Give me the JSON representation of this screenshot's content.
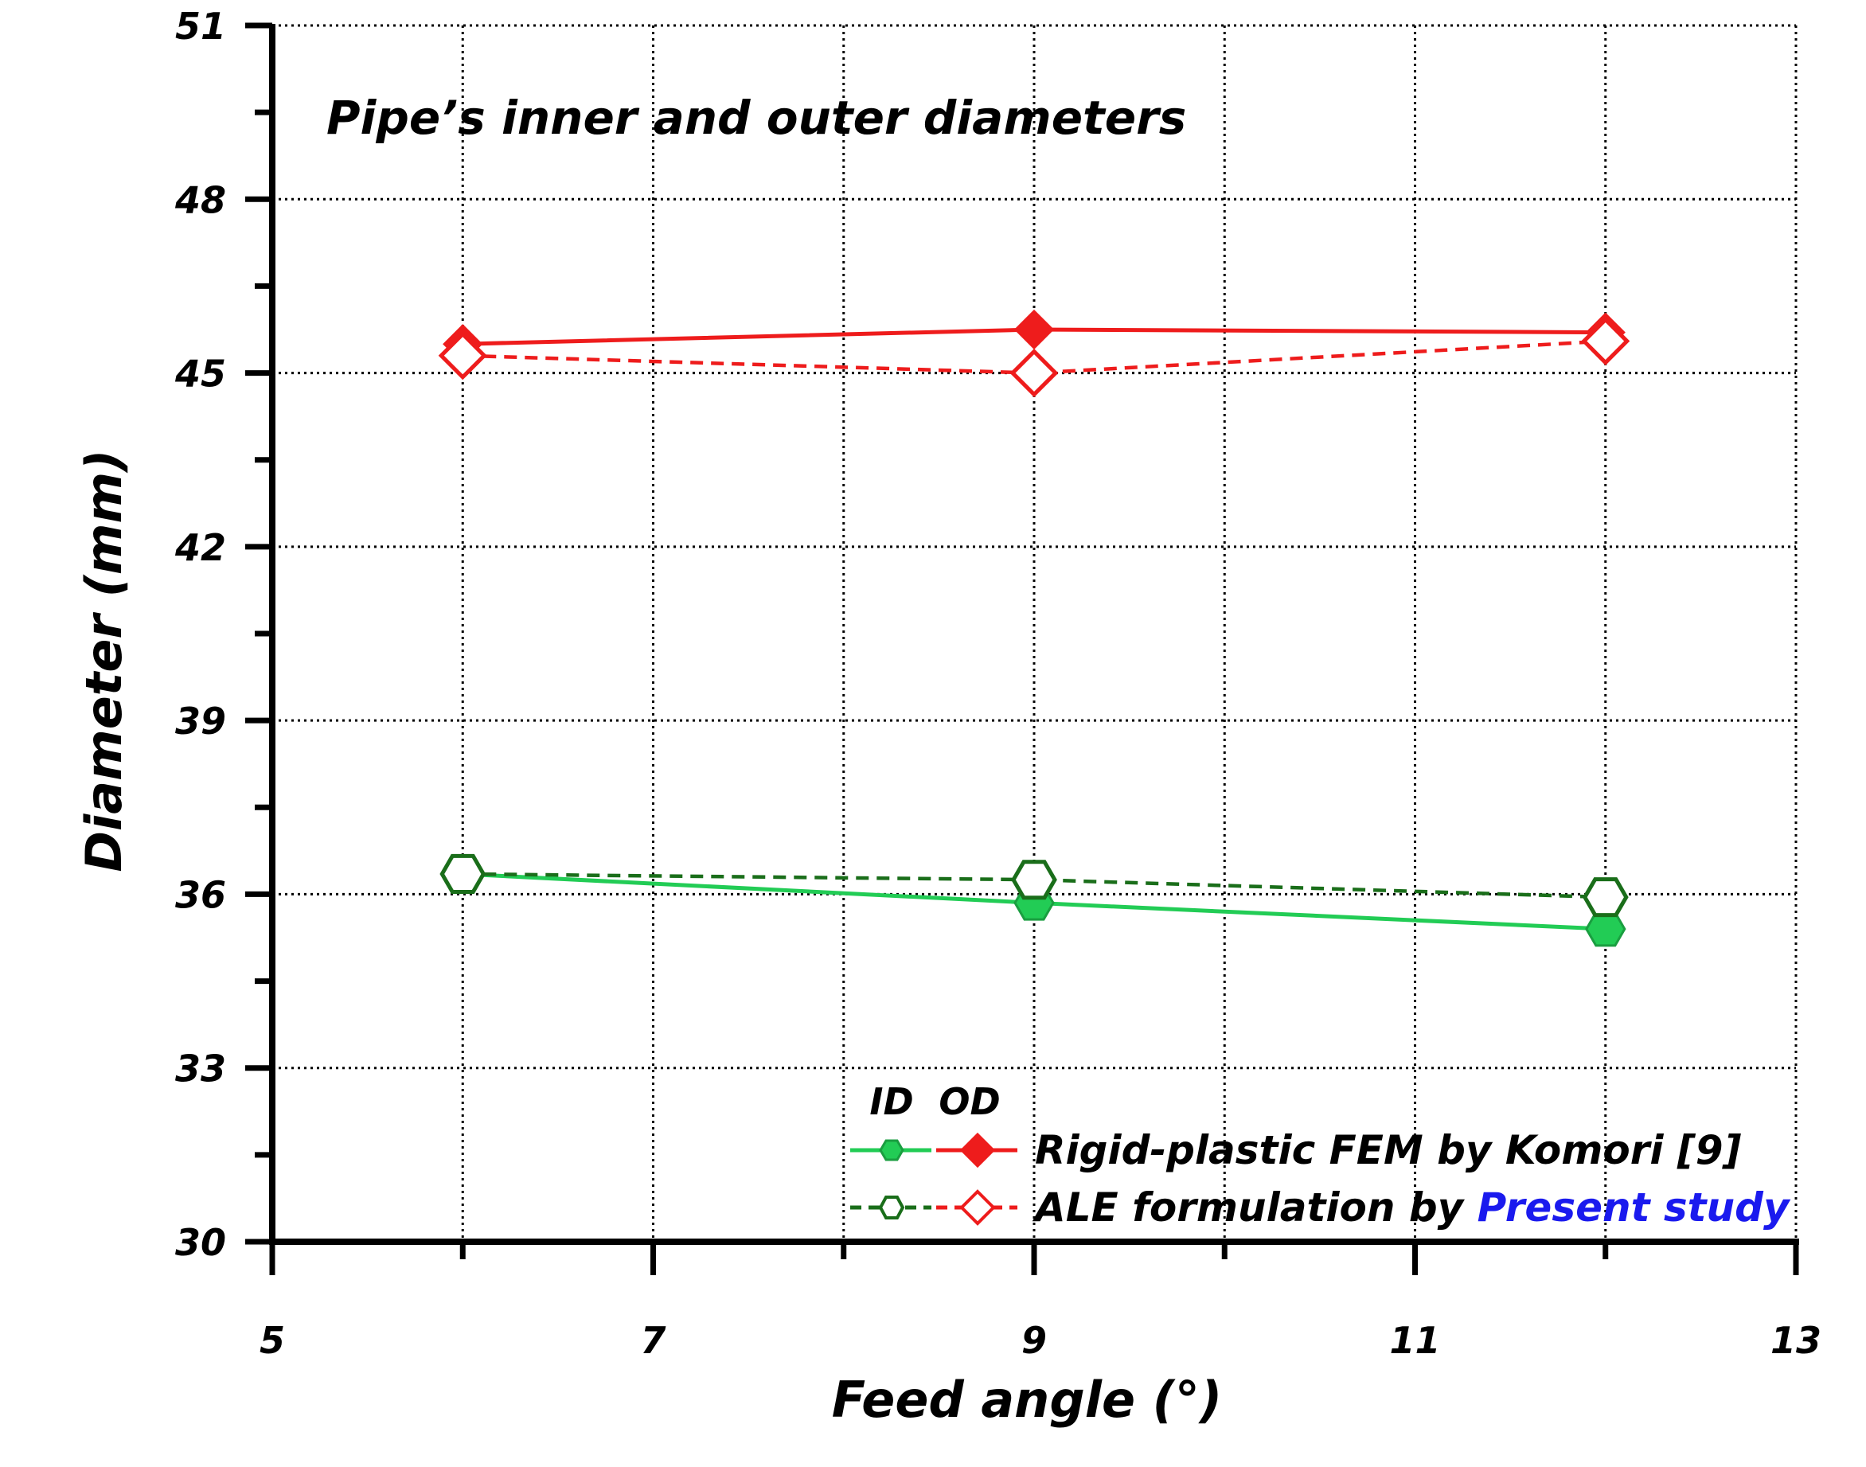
{
  "chart_data": {
    "type": "line",
    "title": "Pipe’s inner and outer diameters",
    "xlabel": "Feed angle (°)",
    "ylabel": "Diameter (mm)",
    "xlim": [
      5,
      13
    ],
    "ylim": [
      30,
      51
    ],
    "xticks": [
      5,
      7,
      9,
      11,
      13
    ],
    "yticks": [
      30,
      33,
      36,
      39,
      42,
      45,
      48,
      51
    ],
    "x": [
      6,
      9,
      12
    ],
    "grid": true,
    "series": [
      {
        "name": "Rigid-plastic FEM by Komori [9] (OD)",
        "group": "OD",
        "style": "solid",
        "marker": "diamond",
        "filled": true,
        "color": "#ee1c1c",
        "values": [
          45.5,
          45.75,
          45.7
        ]
      },
      {
        "name": "ALE formulation by Present study (OD)",
        "group": "OD",
        "style": "dashed",
        "marker": "diamond",
        "filled": false,
        "color": "#ee1c1c",
        "values": [
          45.3,
          45.0,
          45.55
        ]
      },
      {
        "name": "Rigid-plastic FEM by Komori [9] (ID)",
        "group": "ID",
        "style": "solid",
        "marker": "hexagon",
        "filled": true,
        "color": "#22cc55",
        "values": [
          36.35,
          35.85,
          35.4
        ]
      },
      {
        "name": "ALE formulation by Present study (ID)",
        "group": "ID",
        "style": "dashed",
        "marker": "hexagon",
        "filled": false,
        "color": "#1a6e1a",
        "values": [
          36.35,
          36.25,
          35.95
        ]
      }
    ],
    "legend": {
      "position": "bottom-right",
      "column_headers": [
        "ID",
        "OD"
      ],
      "entries": [
        {
          "text": "Rigid-plastic FEM by Komori [9]"
        },
        {
          "text_prefix": "ALE formulation by ",
          "text_highlight": "Present study",
          "highlight_color": "#1a1aee"
        }
      ]
    }
  }
}
